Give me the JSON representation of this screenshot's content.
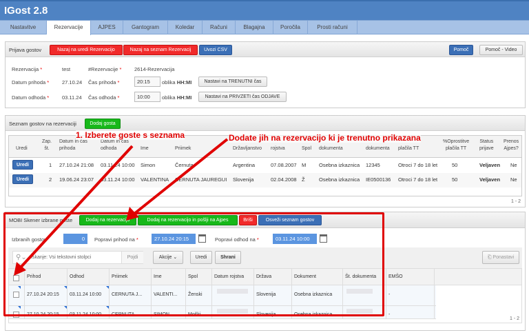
{
  "app": {
    "title": "IGost 2.8"
  },
  "tabs": [
    "Nastavitve",
    "Rezervacije",
    "AJPES",
    "Gantogram",
    "Koledar",
    "Računi",
    "Blagajna",
    "Poročila",
    "Prosti računi"
  ],
  "active_tab": "Rezervacije",
  "prijava": {
    "title": "Prijava gostov",
    "btn_back_edit": "Nazaj na uredi Rezervacijo",
    "btn_back_list": "Nazaj na seznam Rezervacij",
    "btn_csv": "Uvozi CSV",
    "btn_help": "Pomoč",
    "btn_help_video": "Pomoč - Video",
    "rez_label": "Rezervacija",
    "rez_value": "test",
    "num_label": "#Rezervacije",
    "num_value": "2614-Rezervacija",
    "arr_date_label": "Datum prihoda",
    "arr_date": "27.10.24",
    "arr_time_label": "Čas prihoda",
    "arr_time": "20:15",
    "format_prefix": "oblika",
    "format": "HH:MI",
    "btn_now": "Nastavi na TRENUTNI čas",
    "dep_date_label": "Datum odhoda",
    "dep_date": "03.11.24",
    "dep_time_label": "Čas odhoda",
    "dep_time": "10:00",
    "btn_default": "Nastavi na PRIVZETI čas ODJAVE"
  },
  "guests": {
    "title": "Seznam gostov na rezervaciji",
    "btn_add": "Dodaj gosta",
    "headers": [
      [
        "",
        "Uredi"
      ],
      [
        "Zap.",
        "št."
      ],
      [
        "Datum in čas",
        "prihoda"
      ],
      [
        "Datum in čas",
        "odhoda"
      ],
      [
        "",
        "Ime"
      ],
      [
        "",
        "Priimek"
      ],
      [
        "",
        "Državljanstvo"
      ],
      [
        "",
        "rojstva"
      ],
      [
        "",
        "Spol"
      ],
      [
        "",
        "dokumenta"
      ],
      [
        "",
        "dokumenta"
      ],
      [
        "",
        "plačila TT"
      ],
      [
        "%Oprostitve",
        "plačila TT"
      ],
      [
        "Status",
        "prijave"
      ],
      [
        "Prenos",
        "Ajpes?"
      ]
    ],
    "edit_label": "Uredi",
    "rows": [
      [
        "1",
        "27.10.24 21:08",
        "03.11.24 10:00",
        "Simon",
        "Černuta",
        "Argentina",
        "07.08.2007",
        "M",
        "Osebna izkaznica",
        "12345",
        "Otroci 7 do 18 let",
        "50",
        "Veljaven",
        "Ne"
      ],
      [
        "2",
        "19.06.24 23:07",
        "03.11.24 10:00",
        "VALENTINA",
        "CERNUTA JAUREGUI",
        "Slovenija",
        "02.04.2008",
        "Ž",
        "Osebna izkaznica",
        "IE0500136",
        "Otroci 7 do 18 let",
        "50",
        "Veljaven",
        "Ne"
      ]
    ],
    "pagination": "1 - 2"
  },
  "mobi": {
    "title": "MOBI Skener izbrane goste",
    "btn_add": "Dodaj na rezervacijo",
    "btn_add_send": "Dodaj na rezervacijo in pošlji na Ajpes",
    "btn_delete": "Briši",
    "btn_refresh": "Osveži seznam gostov",
    "selected_label": "Izbranih gostov",
    "selected_count": "0",
    "fix_arr_label": "Popravi prihod na",
    "fix_arr": "27.10.24 20:15",
    "fix_dep_label": "Popravi odhod na",
    "fix_dep": "03.11.24 10:00",
    "search_placeholder": "Iskanje: Vsi tekstovni stolpci",
    "btn_go": "Pojdi",
    "btn_actions": "Akcije",
    "btn_edit": "Uredi",
    "btn_save": "Shrani",
    "btn_reset": "Ponastavi",
    "headers": [
      "Prihod",
      "Odhod",
      "Priimek",
      "Ime",
      "Spol",
      "Datum rojstva",
      "Država",
      "Dokument",
      "Št. dokumenta",
      "EMŠO"
    ],
    "rows": [
      [
        "27.10.24 20:15",
        "03.11.24 10:00",
        "CERNUTA J...",
        "VALENTI...",
        "Ženski",
        "",
        "Slovenija",
        "Osebna izkaznica",
        "",
        "-"
      ],
      [
        "27.10.24 20:15",
        "03.11.24 10:00",
        "CERNUTA",
        "SIMON",
        "Moški",
        "",
        "Slovenija",
        "Osebna izkaznica",
        "",
        "-"
      ]
    ],
    "pagination": "1 - 2"
  },
  "annotations": {
    "step1": "1. Izberete goste s seznama",
    "step2": "Dodate jih na rezervacijo ki je trenutno prikazana",
    "color": "#e00000"
  }
}
